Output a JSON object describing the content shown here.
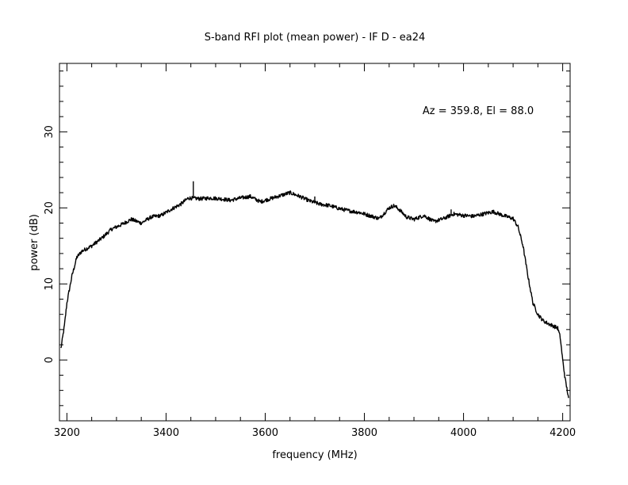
{
  "chart_data": {
    "type": "line",
    "title": "S-band RFI plot (mean power) - IF D - ea24",
    "xlabel": "frequency (MHz)",
    "ylabel": "power (dB)",
    "annotation": "Az = 359.8, El = 88.0",
    "xlim": [
      3185,
      4215
    ],
    "ylim": [
      -8,
      39
    ],
    "x_ticks": [
      3200,
      3400,
      3600,
      3800,
      4000,
      4200
    ],
    "y_ticks": [
      0,
      10,
      20,
      30
    ],
    "grid": false,
    "line_color": "#000000",
    "series": [
      {
        "x": [
          3188,
          3195,
          3200,
          3210,
          3220,
          3230,
          3250,
          3270,
          3290,
          3310,
          3330,
          3350,
          3370,
          3390,
          3410,
          3430,
          3445,
          3470,
          3490,
          3510,
          3530,
          3550,
          3570,
          3590,
          3610,
          3630,
          3650,
          3670,
          3690,
          3710,
          3730,
          3750,
          3770,
          3790,
          3810,
          3830,
          3850,
          3860,
          3870,
          3885,
          3900,
          3920,
          3940,
          3960,
          3980,
          4000,
          4020,
          4040,
          4060,
          4080,
          4100,
          4110,
          4120,
          4130,
          4140,
          4150,
          4160,
          4170,
          4180,
          4190,
          4195,
          4200,
          4205,
          4212
        ],
        "y": [
          1.5,
          4.5,
          7.5,
          11.0,
          13.5,
          14.3,
          15.0,
          16.0,
          17.2,
          17.8,
          18.5,
          18.0,
          18.8,
          19.0,
          19.8,
          20.5,
          21.3,
          21.2,
          21.3,
          21.2,
          21.0,
          21.3,
          21.5,
          20.8,
          21.2,
          21.6,
          22.0,
          21.5,
          20.9,
          20.5,
          20.3,
          19.9,
          19.6,
          19.4,
          19.0,
          18.6,
          20.0,
          20.3,
          19.8,
          18.8,
          18.5,
          19.0,
          18.2,
          18.6,
          19.2,
          19.0,
          18.9,
          19.2,
          19.5,
          19.0,
          18.6,
          17.5,
          15.0,
          11.0,
          7.5,
          6.0,
          5.2,
          4.8,
          4.5,
          4.2,
          3.0,
          0.0,
          -2.5,
          -5.0
        ]
      }
    ],
    "spikes": [
      {
        "x": 3455,
        "y": 23.5
      },
      {
        "x": 3700,
        "y": 21.5
      },
      {
        "x": 3975,
        "y": 19.8
      }
    ]
  }
}
